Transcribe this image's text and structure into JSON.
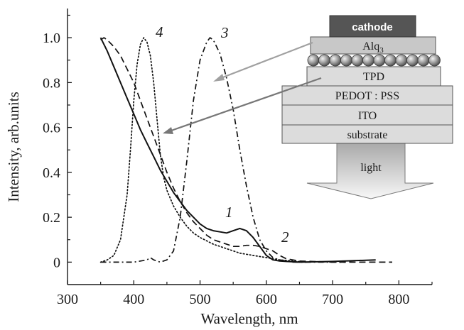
{
  "chart_data": {
    "type": "line",
    "xlabel": "Wavelength, nm",
    "ylabel": "Intensity, arb.units",
    "xlim": [
      300,
      850
    ],
    "ylim": [
      -0.1,
      1.13
    ],
    "x_ticks": [
      "300",
      "400",
      "500",
      "600",
      "700",
      "800"
    ],
    "y_ticks": [
      "0",
      "0.2",
      "0.4",
      "0.6",
      "0.8",
      "1.0"
    ],
    "grid": false,
    "series": [
      {
        "name": "1",
        "style": "solid",
        "x": [
          350,
          360,
          370,
          380,
          390,
          400,
          410,
          420,
          430,
          440,
          450,
          460,
          470,
          480,
          490,
          500,
          510,
          520,
          530,
          540,
          550,
          560,
          570,
          580,
          590,
          600,
          610,
          620,
          630,
          650,
          700,
          765
        ],
        "y": [
          1.0,
          0.94,
          0.87,
          0.8,
          0.73,
          0.66,
          0.59,
          0.53,
          0.47,
          0.41,
          0.36,
          0.31,
          0.27,
          0.23,
          0.2,
          0.17,
          0.15,
          0.14,
          0.135,
          0.13,
          0.14,
          0.15,
          0.14,
          0.11,
          0.07,
          0.03,
          0.01,
          0.005,
          0.003,
          0.0,
          0.003,
          0.01
        ]
      },
      {
        "name": "2",
        "style": "dashed",
        "x": [
          350,
          355,
          360,
          370,
          380,
          390,
          400,
          410,
          420,
          430,
          440,
          450,
          460,
          470,
          480,
          490,
          500,
          510,
          520,
          530,
          540,
          550,
          560,
          570,
          580,
          590,
          600,
          610,
          620,
          630,
          650,
          700,
          760,
          790
        ],
        "y": [
          0.99,
          1.0,
          0.99,
          0.96,
          0.92,
          0.86,
          0.8,
          0.72,
          0.64,
          0.56,
          0.48,
          0.4,
          0.33,
          0.27,
          0.22,
          0.18,
          0.15,
          0.12,
          0.1,
          0.09,
          0.08,
          0.07,
          0.07,
          0.075,
          0.075,
          0.07,
          0.06,
          0.05,
          0.03,
          0.015,
          0.005,
          0.0,
          0.0,
          0.0
        ]
      },
      {
        "name": "3",
        "style": "dash-dot",
        "x": [
          350,
          380,
          400,
          420,
          425,
          430,
          440,
          450,
          460,
          470,
          480,
          490,
          500,
          510,
          515,
          520,
          530,
          540,
          550,
          560,
          570,
          580,
          590,
          600,
          610,
          620,
          640,
          680,
          720
        ],
        "y": [
          0.0,
          0.0,
          0.0,
          0.01,
          0.02,
          0.01,
          0.0,
          0.01,
          0.05,
          0.2,
          0.45,
          0.72,
          0.9,
          0.98,
          1.0,
          0.99,
          0.93,
          0.82,
          0.68,
          0.5,
          0.34,
          0.2,
          0.1,
          0.05,
          0.02,
          0.01,
          0.0,
          0.0,
          0.0
        ]
      },
      {
        "name": "4",
        "style": "dotted",
        "x": [
          350,
          360,
          370,
          380,
          390,
          395,
          400,
          405,
          410,
          415,
          420,
          425,
          430,
          435,
          440,
          445,
          450,
          460,
          470,
          480,
          490,
          500,
          520,
          540,
          560,
          580,
          600,
          620,
          640,
          660
        ],
        "y": [
          0.0,
          0.01,
          0.03,
          0.1,
          0.3,
          0.5,
          0.72,
          0.88,
          0.97,
          1.0,
          0.98,
          0.92,
          0.8,
          0.64,
          0.48,
          0.38,
          0.32,
          0.25,
          0.2,
          0.16,
          0.13,
          0.11,
          0.08,
          0.06,
          0.04,
          0.03,
          0.02,
          0.01,
          0.005,
          0.0
        ]
      }
    ]
  },
  "device_diagram": {
    "layers": [
      "cathode",
      "Alq",
      "TPD",
      "PEDOT : PSS",
      "ITO",
      "substrate"
    ],
    "alq_subscript": "3",
    "light_label": "light"
  }
}
